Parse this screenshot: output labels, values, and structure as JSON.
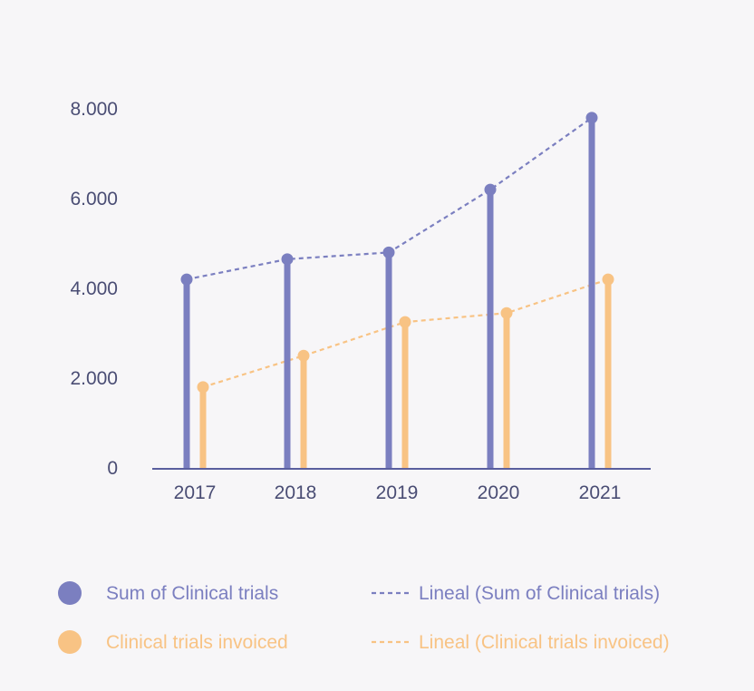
{
  "chart_data": {
    "type": "bar",
    "categories": [
      "2017",
      "2018",
      "2019",
      "2020",
      "2021"
    ],
    "series": [
      {
        "name": "Sum of Clinical trials",
        "values": [
          4200,
          4650,
          4800,
          6200,
          7800
        ],
        "color": "#7b7fc0"
      },
      {
        "name": "Clinical trials invoiced",
        "values": [
          1800,
          2500,
          3250,
          3450,
          4200
        ],
        "color": "#f8c384"
      }
    ],
    "trendlines": [
      {
        "name": "Lineal (Sum of Clinical trials)",
        "values": [
          4200,
          4650,
          4800,
          6200,
          7800
        ],
        "color": "#7b7fc0"
      },
      {
        "name": "Lineal (Clinical trials invoiced)",
        "values": [
          1800,
          2500,
          3250,
          3450,
          4200
        ],
        "color": "#f8c384"
      }
    ],
    "yticks": [
      0,
      2000,
      4000,
      6000,
      8000
    ],
    "ytick_labels": [
      "0",
      "2.000",
      "4.000",
      "6.000",
      "8.000"
    ],
    "ylim": [
      0,
      8000
    ],
    "grid": false,
    "legend_position": "bottom"
  }
}
